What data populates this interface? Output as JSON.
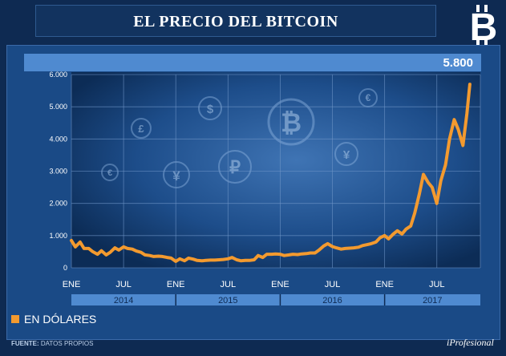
{
  "title": "EL PRECIO DEL BITCOIN",
  "logo_icon": "bitcoin-logo-icon",
  "highlight_value": "5.800",
  "legend": {
    "label": "EN DÓLARES",
    "color": "#f39a2f"
  },
  "source": {
    "label": "FUENTE:",
    "text": "DATOS PROPIOS"
  },
  "brand": "iProfesional",
  "colors": {
    "background": "#0e2a52",
    "panel": "#1a4a86",
    "strip": "#4f8ad0",
    "line": "#f39a2f",
    "plot": "#0c2c56"
  },
  "chart_data": {
    "type": "line",
    "title": "EL PRECIO DEL BITCOIN",
    "ylabel": "",
    "xlabel": "",
    "ylim": [
      0,
      6000
    ],
    "yticks": [
      0,
      1000,
      2000,
      3000,
      4000,
      5000,
      6000
    ],
    "ytick_labels": [
      "0",
      "1.000",
      "2.000",
      "3.000",
      "4.000",
      "5.000",
      "6.000"
    ],
    "xlim": [
      "2014-01",
      "2017-12"
    ],
    "xticks": [
      "2014-01",
      "2014-07",
      "2015-01",
      "2015-07",
      "2016-01",
      "2016-07",
      "2017-01",
      "2017-07"
    ],
    "xtick_labels": [
      "ENE",
      "JUL",
      "ENE",
      "JUL",
      "ENE",
      "JUL",
      "ENE",
      "JUL"
    ],
    "year_labels": [
      "2014",
      "2015",
      "2016",
      "2017"
    ],
    "grid": true,
    "series": [
      {
        "name": "EN DÓLARES",
        "x": [
          "2014-01",
          "2014-01-15",
          "2014-02",
          "2014-02-15",
          "2014-03",
          "2014-03-15",
          "2014-04",
          "2014-04-15",
          "2014-05",
          "2014-05-15",
          "2014-06",
          "2014-06-15",
          "2014-07",
          "2014-07-15",
          "2014-08",
          "2014-08-15",
          "2014-09",
          "2014-09-15",
          "2014-10",
          "2014-10-15",
          "2014-11",
          "2014-11-15",
          "2014-12",
          "2014-12-15",
          "2015-01",
          "2015-01-15",
          "2015-02",
          "2015-02-15",
          "2015-03",
          "2015-03-15",
          "2015-04",
          "2015-04-15",
          "2015-05",
          "2015-05-15",
          "2015-06",
          "2015-06-15",
          "2015-07",
          "2015-07-15",
          "2015-08",
          "2015-08-15",
          "2015-09",
          "2015-09-15",
          "2015-10",
          "2015-10-15",
          "2015-11",
          "2015-11-15",
          "2015-12",
          "2015-12-15",
          "2016-01",
          "2016-01-15",
          "2016-02",
          "2016-02-15",
          "2016-03",
          "2016-03-15",
          "2016-04",
          "2016-04-15",
          "2016-05",
          "2016-05-15",
          "2016-06",
          "2016-06-15",
          "2016-07",
          "2016-07-15",
          "2016-08",
          "2016-08-15",
          "2016-09",
          "2016-09-15",
          "2016-10",
          "2016-10-15",
          "2016-11",
          "2016-11-15",
          "2016-12",
          "2016-12-15",
          "2017-01",
          "2017-01-15",
          "2017-02",
          "2017-02-15",
          "2017-03",
          "2017-03-15",
          "2017-04",
          "2017-04-15",
          "2017-05",
          "2017-05-15",
          "2017-06",
          "2017-06-15",
          "2017-07",
          "2017-07-15",
          "2017-08",
          "2017-08-15",
          "2017-09",
          "2017-09-15",
          "2017-10",
          "2017-10-15",
          "2017-10-25"
        ],
        "values": [
          850,
          650,
          800,
          600,
          600,
          500,
          420,
          530,
          400,
          480,
          620,
          550,
          650,
          600,
          580,
          520,
          480,
          400,
          380,
          350,
          360,
          350,
          320,
          300,
          200,
          280,
          220,
          300,
          270,
          230,
          220,
          230,
          240,
          240,
          250,
          260,
          280,
          320,
          250,
          220,
          230,
          230,
          250,
          380,
          320,
          420,
          420,
          430,
          420,
          380,
          400,
          420,
          410,
          430,
          440,
          460,
          460,
          550,
          680,
          750,
          660,
          620,
          580,
          600,
          610,
          620,
          640,
          690,
          720,
          750,
          800,
          930,
          1000,
          900,
          1050,
          1150,
          1050,
          1200,
          1300,
          1700,
          2300,
          2900,
          2650,
          2500,
          2000,
          2700,
          3200,
          4000,
          4600,
          4300,
          3800,
          4800,
          5700
        ]
      }
    ]
  }
}
